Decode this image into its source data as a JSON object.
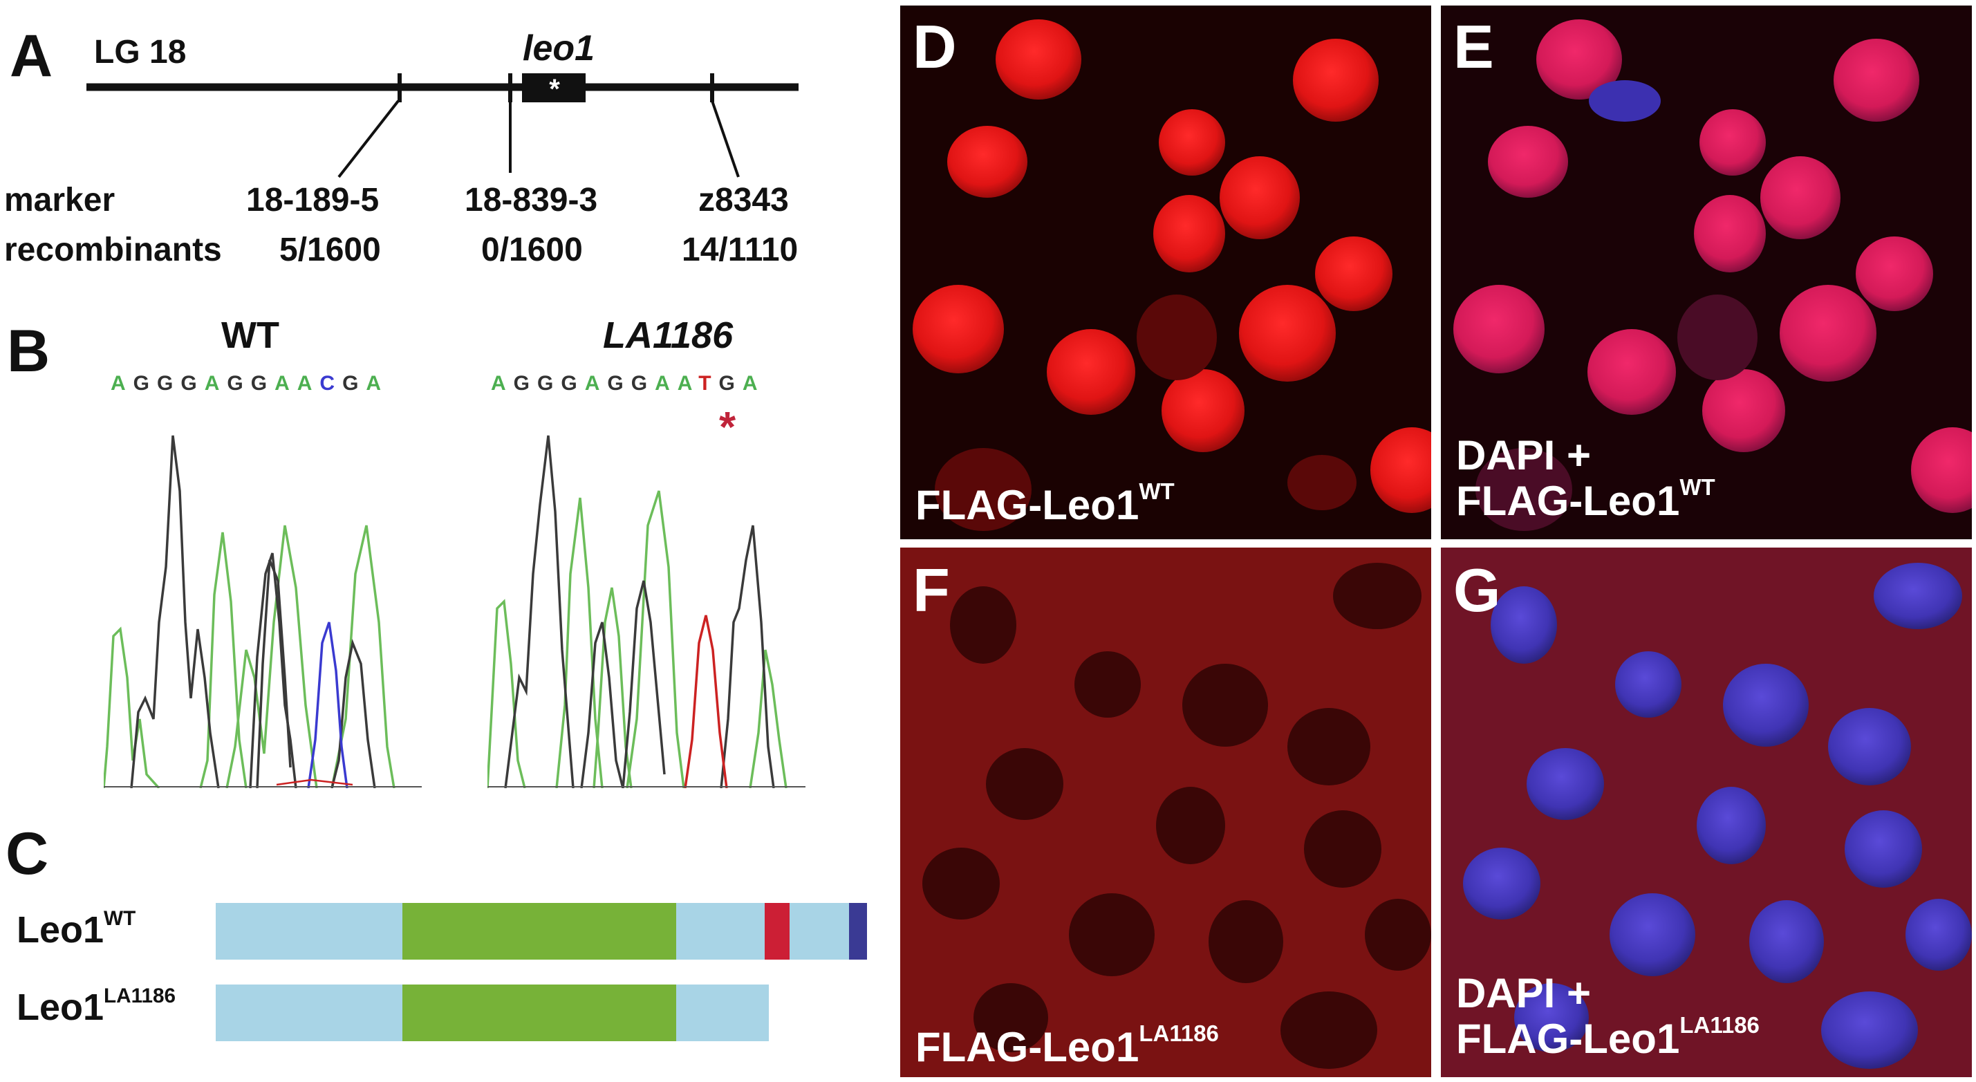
{
  "panels": {
    "A": {
      "letter": "A",
      "chromosome": "LG 18",
      "gene": "leo1",
      "gene_mark": "*",
      "row_headers": {
        "marker": "marker",
        "recombinants": "recombinants"
      },
      "markers": [
        {
          "name": "18-189-5",
          "recombinants": "5/1600"
        },
        {
          "name": "18-839-3",
          "recombinants": "0/1600"
        },
        {
          "name": "z8343",
          "recombinants": "14/1110"
        }
      ]
    },
    "B": {
      "letter": "B",
      "wt": {
        "title": "WT",
        "sequence": [
          "A",
          "G",
          "G",
          "G",
          "A",
          "G",
          "G",
          "A",
          "A",
          "C",
          "G",
          "A"
        ]
      },
      "mutant": {
        "title": "LA1186",
        "sequence": [
          "A",
          "G",
          "G",
          "G",
          "A",
          "G",
          "G",
          "A",
          "A",
          "T",
          "G",
          "A"
        ],
        "mark": "*"
      },
      "base_colors": {
        "A": "#4caf50",
        "G": "#333333",
        "C": "#3a3ad0",
        "T": "#cc2222"
      }
    },
    "C": {
      "letter": "C",
      "proteins": [
        {
          "name": "Leo1",
          "superscript": "WT"
        },
        {
          "name": "Leo1",
          "superscript": "LA1186"
        }
      ],
      "domain_colors": {
        "base": "#a8d4e6",
        "central": "#77b238",
        "red": "#cc1f35",
        "end": "#3a3a94"
      }
    },
    "D": {
      "letter": "D",
      "label_line1": "",
      "label_line2": "FLAG-Leo1",
      "superscript": "WT"
    },
    "E": {
      "letter": "E",
      "label_line1": "DAPI +",
      "label_line2": "FLAG-Leo1",
      "superscript": "WT"
    },
    "F": {
      "letter": "F",
      "label_line1": "",
      "label_line2": "FLAG-Leo1",
      "superscript": "LA1186"
    },
    "G": {
      "letter": "G",
      "label_line1": "DAPI +",
      "label_line2": "FLAG-Leo1",
      "superscript": "LA1186"
    }
  }
}
